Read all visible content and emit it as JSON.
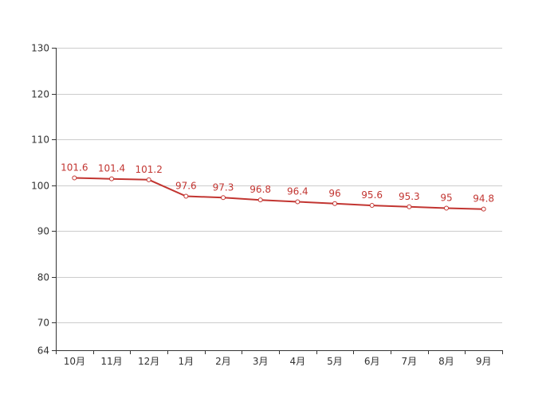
{
  "chart_data": {
    "type": "line",
    "title": "",
    "xlabel": "",
    "ylabel": "",
    "categories": [
      "10月",
      "11月",
      "12月",
      "1月",
      "2月",
      "3月",
      "4月",
      "5月",
      "6月",
      "7月",
      "8月",
      "9月"
    ],
    "series": [
      {
        "values": [
          101.6,
          101.4,
          101.2,
          97.6,
          97.3,
          96.8,
          96.4,
          96,
          95.6,
          95.3,
          95,
          94.8
        ],
        "color": "#c23531"
      }
    ],
    "ylim": [
      64,
      130
    ],
    "yticks": [
      64,
      70,
      80,
      90,
      100,
      110,
      120,
      130
    ],
    "grid": true,
    "legend": "none",
    "data_labels": true
  }
}
